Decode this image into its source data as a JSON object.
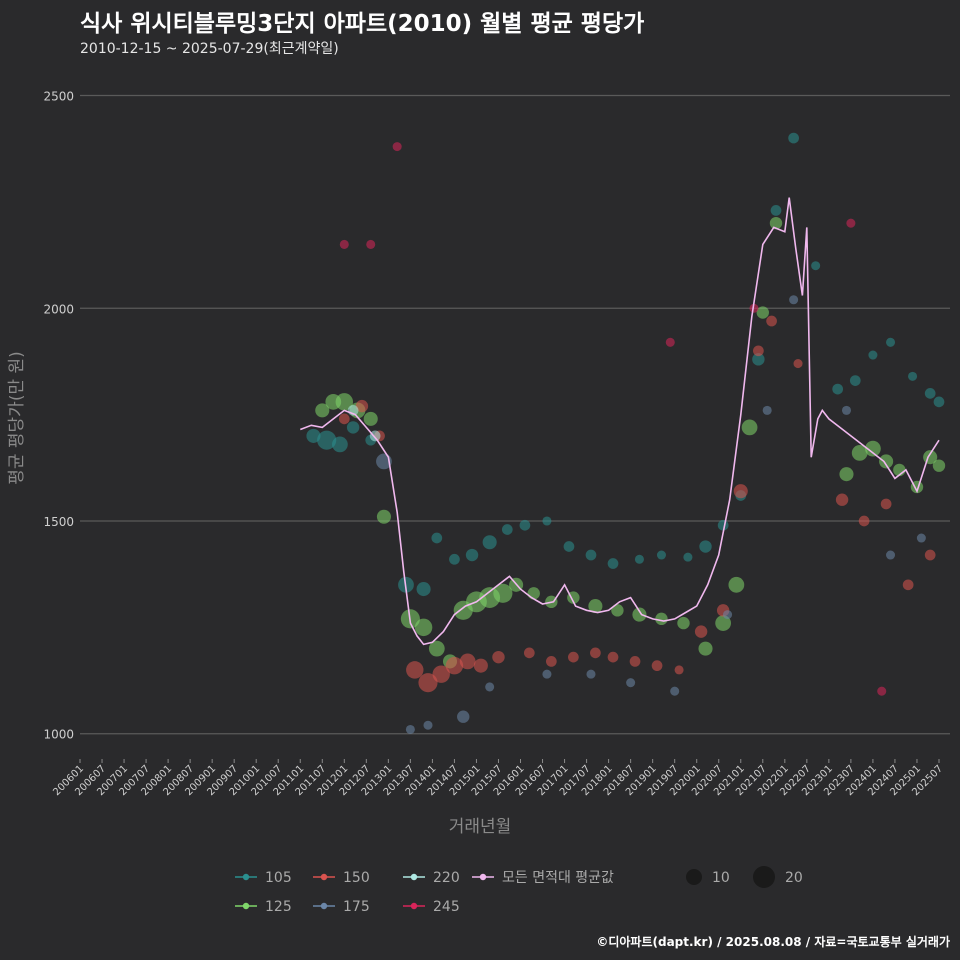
{
  "header": {
    "title": "식사 위시티블루밍3단지 아파트(2010) 월별 평균 평당가",
    "subtitle": "2010-12-15 ~ 2025-07-29(최근계약일)"
  },
  "caption": "©디아파트(dapt.kr) / 2025.08.08 / 자료=국토교통부 실거래가",
  "colors": {
    "background": "#2a2a2c",
    "grid": "#5a5a5a",
    "s105": "#2a8f8f",
    "s125": "#7fd66a",
    "s150": "#d9534f",
    "s175": "#6b86a8",
    "s220": "#aee8e2",
    "s245": "#d8245a",
    "avg": "#f0b8ee"
  },
  "chart_data": {
    "type": "scatter",
    "title": "식사 위시티블루밍3단지 아파트(2010) 월별 평균 평당가",
    "xlabel": "거래년월",
    "ylabel": "평균 평당가(만 원)",
    "ylim": [
      950,
      2560
    ],
    "yticks": [
      1000,
      1500,
      2000,
      2500
    ],
    "x_range": [
      2006.0,
      2025.75
    ],
    "xtick_labels": [
      "200601",
      "200607",
      "200701",
      "200707",
      "200801",
      "200807",
      "200901",
      "200907",
      "201001",
      "201007",
      "201101",
      "201107",
      "201201",
      "201207",
      "201301",
      "201307",
      "201401",
      "201407",
      "201501",
      "201507",
      "201601",
      "201607",
      "201701",
      "201707",
      "201801",
      "201807",
      "201901",
      "201907",
      "202001",
      "202007",
      "202101",
      "202107",
      "202201",
      "202207",
      "202301",
      "202307",
      "202401",
      "202407",
      "202501",
      "202507"
    ],
    "legend": {
      "items": [
        {
          "label": "105",
          "key": "s105"
        },
        {
          "label": "150",
          "key": "s150"
        },
        {
          "label": "220",
          "key": "s220"
        },
        {
          "label": "모든 면적대 평균값",
          "key": "avg"
        },
        {
          "label": "125",
          "key": "s125"
        },
        {
          "label": "175",
          "key": "s175"
        },
        {
          "label": "245",
          "key": "s245"
        }
      ],
      "size_items": [
        {
          "label": "10",
          "value": 10
        },
        {
          "label": "20",
          "value": 20
        }
      ],
      "placement": "bottom"
    },
    "average_line": {
      "name": "모든 면적대 평균값",
      "x": [
        2011.0,
        2011.25,
        2011.5,
        2011.75,
        2012.0,
        2012.25,
        2012.5,
        2012.75,
        2013.0,
        2013.2,
        2013.35,
        2013.5,
        2013.65,
        2013.8,
        2014.0,
        2014.25,
        2014.5,
        2014.75,
        2015.0,
        2015.25,
        2015.5,
        2015.75,
        2016.0,
        2016.25,
        2016.5,
        2016.75,
        2017.0,
        2017.25,
        2017.5,
        2017.75,
        2018.0,
        2018.25,
        2018.5,
        2018.75,
        2019.0,
        2019.25,
        2019.5,
        2019.75,
        2020.0,
        2020.25,
        2020.5,
        2020.75,
        2021.0,
        2021.25,
        2021.5,
        2021.75,
        2022.0,
        2022.1,
        2022.25,
        2022.4,
        2022.5,
        2022.6,
        2022.75,
        2022.85,
        2023.0,
        2023.25,
        2023.5,
        2023.75,
        2024.0,
        2024.25,
        2024.5,
        2024.75,
        2025.0,
        2025.25,
        2025.5
      ],
      "y": [
        1715,
        1725,
        1720,
        1740,
        1760,
        1750,
        1720,
        1690,
        1650,
        1520,
        1380,
        1260,
        1230,
        1210,
        1215,
        1240,
        1280,
        1300,
        1310,
        1330,
        1350,
        1370,
        1340,
        1320,
        1305,
        1310,
        1350,
        1300,
        1290,
        1285,
        1290,
        1310,
        1320,
        1280,
        1270,
        1265,
        1270,
        1285,
        1300,
        1350,
        1420,
        1550,
        1750,
        1980,
        2150,
        2190,
        2180,
        2260,
        2140,
        2030,
        2190,
        1650,
        1740,
        1760,
        1740,
        1720,
        1700,
        1680,
        1660,
        1640,
        1600,
        1620,
        1570,
        1650,
        1690
      ]
    },
    "series": [
      {
        "name": "105",
        "key": "s105",
        "x": [
          2011.3,
          2011.6,
          2011.9,
          2012.2,
          2012.6,
          2013.4,
          2013.8,
          2014.1,
          2014.5,
          2014.9,
          2015.3,
          2015.7,
          2016.1,
          2016.6,
          2017.1,
          2017.6,
          2018.1,
          2018.7,
          2019.2,
          2019.8,
          2020.2,
          2020.6,
          2021.0,
          2021.4,
          2021.8,
          2022.2,
          2022.7,
          2023.2,
          2023.6,
          2024.0,
          2024.4,
          2024.9,
          2025.3,
          2025.5
        ],
        "y": [
          1700,
          1690,
          1680,
          1720,
          1690,
          1350,
          1340,
          1460,
          1410,
          1420,
          1450,
          1480,
          1490,
          1500,
          1440,
          1420,
          1400,
          1410,
          1420,
          1415,
          1440,
          1490,
          1560,
          1880,
          2230,
          2400,
          2100,
          1810,
          1830,
          1890,
          1920,
          1840,
          1800,
          1780
        ],
        "size": [
          12,
          18,
          14,
          10,
          8,
          14,
          12,
          8,
          8,
          10,
          12,
          8,
          8,
          6,
          8,
          8,
          8,
          6,
          6,
          6,
          10,
          8,
          8,
          10,
          8,
          8,
          6,
          8,
          8,
          6,
          6,
          6,
          8,
          8
        ]
      },
      {
        "name": "125",
        "key": "s125",
        "x": [
          2011.5,
          2011.75,
          2012.0,
          2012.3,
          2012.6,
          2012.9,
          2013.5,
          2013.8,
          2014.1,
          2014.4,
          2014.7,
          2015.0,
          2015.3,
          2015.6,
          2015.9,
          2016.3,
          2016.7,
          2017.2,
          2017.7,
          2018.2,
          2018.7,
          2019.2,
          2019.7,
          2020.2,
          2020.6,
          2020.9,
          2021.2,
          2021.5,
          2021.8,
          2023.4,
          2023.7,
          2024.0,
          2024.3,
          2024.6,
          2025.0,
          2025.3,
          2025.5
        ],
        "y": [
          1760,
          1780,
          1780,
          1760,
          1740,
          1510,
          1270,
          1250,
          1200,
          1170,
          1290,
          1310,
          1320,
          1330,
          1350,
          1330,
          1310,
          1320,
          1300,
          1290,
          1280,
          1270,
          1260,
          1200,
          1260,
          1350,
          1720,
          1990,
          2200,
          1610,
          1660,
          1670,
          1640,
          1620,
          1580,
          1650,
          1630
        ],
        "size": [
          12,
          14,
          16,
          14,
          12,
          12,
          18,
          16,
          14,
          12,
          18,
          20,
          20,
          18,
          12,
          10,
          10,
          10,
          12,
          10,
          12,
          10,
          10,
          12,
          14,
          14,
          14,
          10,
          10,
          12,
          14,
          14,
          12,
          10,
          10,
          12,
          10
        ]
      },
      {
        "name": "150",
        "key": "s150",
        "x": [
          2012.0,
          2012.4,
          2012.8,
          2013.6,
          2013.9,
          2014.2,
          2014.5,
          2014.8,
          2015.1,
          2015.5,
          2016.2,
          2016.7,
          2017.2,
          2017.7,
          2018.1,
          2018.6,
          2019.1,
          2019.6,
          2020.1,
          2020.6,
          2021.0,
          2021.4,
          2021.7,
          2022.3,
          2023.3,
          2023.8,
          2024.3,
          2024.8,
          2025.3
        ],
        "y": [
          1740,
          1770,
          1700,
          1150,
          1120,
          1140,
          1160,
          1170,
          1160,
          1180,
          1190,
          1170,
          1180,
          1190,
          1180,
          1170,
          1160,
          1150,
          1240,
          1290,
          1570,
          1900,
          1970,
          1870,
          1550,
          1500,
          1540,
          1350,
          1420
        ],
        "size": [
          8,
          10,
          8,
          16,
          18,
          16,
          16,
          14,
          12,
          10,
          8,
          8,
          8,
          8,
          8,
          8,
          8,
          6,
          10,
          10,
          12,
          8,
          8,
          6,
          10,
          8,
          8,
          8,
          8
        ]
      },
      {
        "name": "175",
        "key": "s175",
        "x": [
          2012.9,
          2013.5,
          2013.9,
          2014.7,
          2015.3,
          2016.6,
          2017.6,
          2018.5,
          2019.5,
          2020.7,
          2021.6,
          2022.2,
          2023.4,
          2024.4,
          2025.1
        ],
        "y": [
          1640,
          1010,
          1020,
          1040,
          1110,
          1140,
          1140,
          1120,
          1100,
          1280,
          1760,
          2020,
          1760,
          1420,
          1460
        ],
        "size": [
          14,
          6,
          6,
          10,
          6,
          6,
          6,
          6,
          6,
          6,
          6,
          6,
          6,
          6,
          6
        ]
      },
      {
        "name": "220",
        "key": "s220",
        "x": [
          2012.2,
          2012.7
        ],
        "y": [
          1760,
          1700
        ],
        "size": [
          8,
          8
        ]
      },
      {
        "name": "245",
        "key": "s245",
        "x": [
          2012.0,
          2012.6,
          2013.2,
          2019.4,
          2021.3,
          2023.5,
          2024.2
        ],
        "y": [
          2150,
          2150,
          2380,
          1920,
          2000,
          2200,
          1100
        ],
        "size": [
          6,
          6,
          6,
          6,
          6,
          6,
          6
        ]
      }
    ]
  }
}
